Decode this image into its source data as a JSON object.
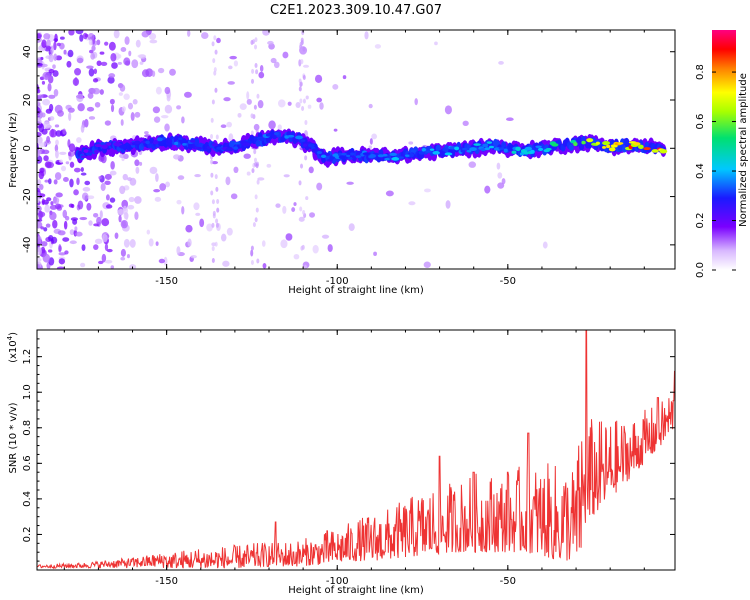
{
  "title": "C2E1.2023.309.10.47.G07",
  "chart_data": [
    {
      "type": "heatmap",
      "xlabel": "Height of straight line (km)",
      "ylabel": "Frequency (Hz)",
      "xlim": [
        -188,
        -1
      ],
      "ylim": [
        -50,
        49
      ],
      "xticks": [
        -150,
        -100,
        -50
      ],
      "yticks": [
        -40,
        -20,
        0,
        20,
        40
      ],
      "ridge": {
        "x": [
          -176,
          -170,
          -162,
          -155,
          -148,
          -140,
          -132,
          -125,
          -118,
          -112,
          -108,
          -104,
          -98,
          -90,
          -82,
          -75,
          -68,
          -60,
          -55,
          -50,
          -45,
          -40,
          -35,
          -30,
          -25,
          -20,
          -12,
          -4
        ],
        "freq": [
          -3,
          0,
          1,
          2,
          3,
          1,
          0,
          3,
          5,
          4,
          1,
          -4,
          -3,
          -3,
          -3,
          -2,
          -1,
          0,
          1,
          0,
          -1,
          0,
          1,
          2,
          2,
          1,
          1,
          0
        ],
        "amplitude": [
          0.22,
          0.25,
          0.3,
          0.3,
          0.35,
          0.3,
          0.3,
          0.35,
          0.4,
          0.35,
          0.3,
          0.35,
          0.35,
          0.4,
          0.4,
          0.4,
          0.42,
          0.4,
          0.45,
          0.42,
          0.45,
          0.5,
          0.55,
          0.65,
          0.7,
          0.8,
          0.85,
          0.9
        ]
      },
      "colorbar": {
        "label": "Normalized spectral amplitude",
        "range": [
          0,
          0.97
        ],
        "ticks": [
          "0.0",
          "0.2",
          "0.4",
          "0.6",
          "0.8"
        ]
      }
    },
    {
      "type": "line",
      "xlabel": "Height of straight line (km)",
      "ylabel": "SNR (10 * v/v)",
      "multiplier": "(x10",
      "multiplier_exp": "4",
      "multiplier_close": ")",
      "xlim": [
        -188,
        -1
      ],
      "ylim": [
        0,
        1.35
      ],
      "xticks": [
        -150,
        -100,
        -50
      ],
      "yticks": [
        "0.2",
        "0.4",
        "0.6",
        "0.8",
        "1.0",
        "1.2"
      ],
      "series": [
        {
          "color": "#ee3333",
          "envelope": {
            "x": [
              -188,
              -175,
              -160,
              -150,
              -140,
              -130,
              -120,
              -112,
              -105,
              -100,
              -95,
              -90,
              -85,
              -80,
              -75,
              -70,
              -65,
              -60,
              -55,
              -50,
              -45,
              -40,
              -35,
              -30,
              -28,
              -25,
              -20,
              -15,
              -10,
              -5,
              -1
            ],
            "low": [
              0.01,
              0.01,
              0.01,
              0.01,
              0.01,
              0.01,
              0.02,
              0.02,
              0.03,
              0.04,
              0.05,
              0.05,
              0.06,
              0.07,
              0.08,
              0.09,
              0.1,
              0.1,
              0.1,
              0.1,
              0.1,
              0.08,
              0.05,
              0.05,
              0.1,
              0.3,
              0.4,
              0.5,
              0.6,
              0.7,
              0.8
            ],
            "high": [
              0.03,
              0.04,
              0.07,
              0.1,
              0.13,
              0.14,
              0.16,
              0.17,
              0.2,
              0.24,
              0.28,
              0.32,
              0.35,
              0.4,
              0.45,
              0.5,
              0.5,
              0.55,
              0.55,
              0.55,
              0.6,
              0.6,
              0.6,
              0.6,
              0.95,
              0.85,
              0.85,
              0.85,
              0.9,
              0.95,
              1.05
            ]
          },
          "peaks": [
            {
              "x": -118,
              "y": 0.27
            },
            {
              "x": -103,
              "y": 0.22
            },
            {
              "x": -70,
              "y": 0.64
            },
            {
              "x": -60,
              "y": 0.55
            },
            {
              "x": -50,
              "y": 0.55
            },
            {
              "x": -44,
              "y": 0.77
            },
            {
              "x": -27,
              "y": 1.35
            },
            {
              "x": -6,
              "y": 0.97
            },
            {
              "x": -1,
              "y": 1.12
            }
          ]
        }
      ]
    }
  ]
}
